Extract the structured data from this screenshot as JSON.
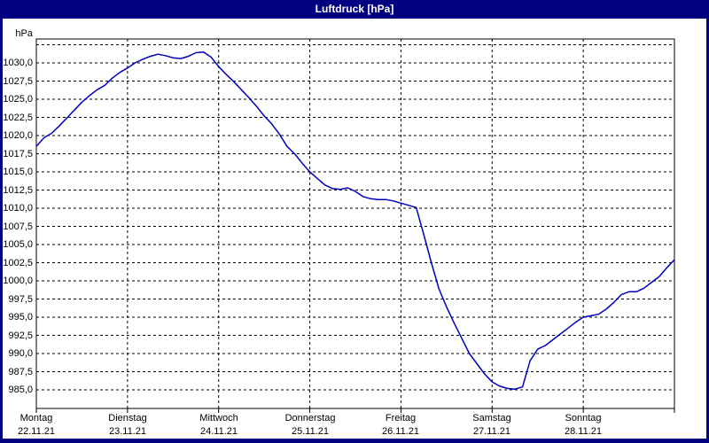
{
  "window": {
    "title": "Luftdruck [hPa]",
    "title_bar_color": "#000080",
    "title_text_color": "#ffffff",
    "frame_color": "#000080",
    "panel_color": "#ffffff"
  },
  "chart_data": {
    "type": "line",
    "title": "Luftdruck [hPa]",
    "unit_label": "hPa",
    "line_color": "#0000c0",
    "grid": true,
    "grid_color": "#000000",
    "legend": "none",
    "y_axis": {
      "min": 985.0,
      "max": 1032.5,
      "tick_step": 2.5,
      "tick_labels": [
        "985,0",
        "987,5",
        "990,0",
        "992,5",
        "995,0",
        "997,5",
        "1000,0",
        "1002,5",
        "1005,0",
        "1007,5",
        "1010,0",
        "1012,5",
        "1015,0",
        "1017,5",
        "1020,0",
        "1022,5",
        "1025,0",
        "1027,5",
        "1030,0"
      ],
      "top_gridline_unlabeled": 1032.5
    },
    "x_axis": {
      "span_days": 7,
      "days": [
        {
          "name": "Montag",
          "date": "22.11.21"
        },
        {
          "name": "Dienstag",
          "date": "23.11.21"
        },
        {
          "name": "Mittwoch",
          "date": "24.11.21"
        },
        {
          "name": "Donnerstag",
          "date": "25.11.21"
        },
        {
          "name": "Freitag",
          "date": "26.11.21"
        },
        {
          "name": "Samstag",
          "date": "27.11.21"
        },
        {
          "name": "Sonntag",
          "date": "28.11.21"
        }
      ]
    },
    "series": [
      {
        "name": "Luftdruck",
        "start": "Montag 22.11.21 00:00",
        "sample_interval_hours": 2,
        "values": [
          1018.5,
          1019.7,
          1020.3,
          1021.3,
          1022.4,
          1023.5,
          1024.6,
          1025.5,
          1026.3,
          1026.9,
          1027.9,
          1028.7,
          1029.3,
          1030.0,
          1030.5,
          1030.9,
          1031.2,
          1031.0,
          1030.7,
          1030.6,
          1030.9,
          1031.4,
          1031.5,
          1030.8,
          1029.5,
          1028.4,
          1027.4,
          1026.3,
          1025.2,
          1024.0,
          1022.7,
          1021.6,
          1020.2,
          1018.5,
          1017.5,
          1016.2,
          1015.0,
          1014.1,
          1013.2,
          1012.7,
          1012.6,
          1012.8,
          1012.3,
          1011.6,
          1011.3,
          1011.2,
          1011.2,
          1011.0,
          1010.7,
          1010.4,
          1010.1,
          1006.4,
          1002.5,
          998.9,
          996.4,
          994.2,
          992.1,
          990.0,
          988.6,
          987.2,
          986.1,
          985.5,
          985.2,
          985.1,
          985.4,
          989.0,
          990.6,
          991.1,
          991.9,
          992.7,
          993.5,
          994.3,
          995.0,
          995.2,
          995.4,
          996.1,
          997.0,
          998.1,
          998.5,
          998.5,
          999.0,
          999.8,
          1000.6,
          1001.8,
          1002.9
        ]
      }
    ]
  }
}
